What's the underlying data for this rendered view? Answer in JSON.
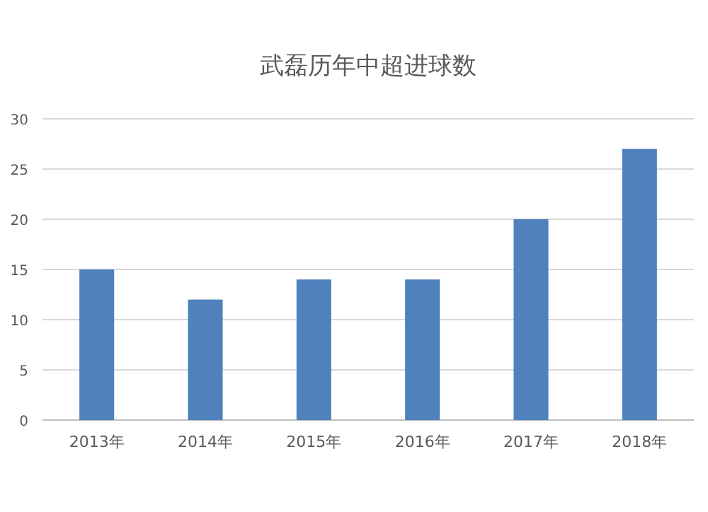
{
  "chart_data": {
    "type": "bar",
    "title": "武磊历年中超进球数",
    "categories": [
      "2013年",
      "2014年",
      "2015年",
      "2016年",
      "2017年",
      "2018年"
    ],
    "values": [
      15,
      12,
      14,
      14,
      20,
      27
    ],
    "color": "#4f81bd",
    "ylim": [
      0,
      30
    ],
    "yticks": [
      0,
      5,
      10,
      15,
      20,
      25,
      30
    ],
    "grid": "y"
  }
}
